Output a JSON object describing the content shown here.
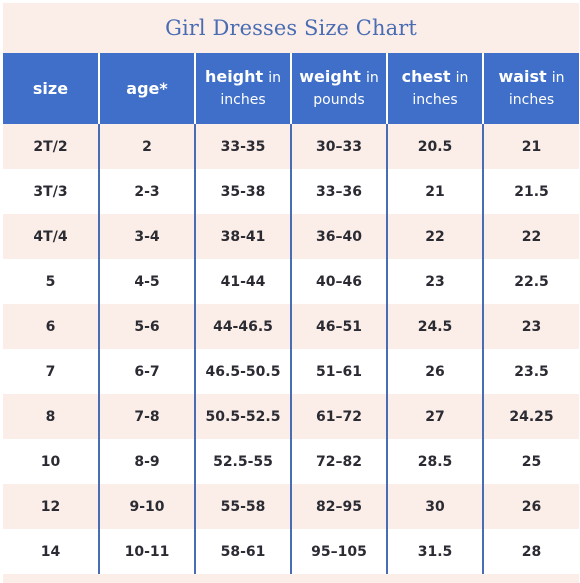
{
  "title": "Girl Dresses Size Chart",
  "headers": [
    {
      "main": "size",
      "unit": ""
    },
    {
      "main": "age*",
      "unit": ""
    },
    {
      "main": "height",
      "unit_inline": "in",
      "unit": "inches"
    },
    {
      "main": "weight",
      "unit_inline": "in",
      "unit": "pounds"
    },
    {
      "main": "chest",
      "unit_inline": "in",
      "unit": "inches"
    },
    {
      "main": "waist",
      "unit_inline": "in",
      "unit": "inches"
    }
  ],
  "rows": [
    [
      "2T/2",
      "2",
      "33-35",
      "30–33",
      "20.5",
      "21"
    ],
    [
      "3T/3",
      "2-3",
      "35-38",
      "33–36",
      "21",
      "21.5"
    ],
    [
      "4T/4",
      "3-4",
      "38-41",
      "36–40",
      "22",
      "22"
    ],
    [
      "5",
      "4-5",
      "41-44",
      "40–46",
      "23",
      "22.5"
    ],
    [
      "6",
      "5-6",
      "44-46.5",
      "46–51",
      "24.5",
      "23"
    ],
    [
      "7",
      "6-7",
      "46.5-50.5",
      "51–61",
      "26",
      "23.5"
    ],
    [
      "8",
      "7-8",
      "50.5-52.5",
      "61–72",
      "27",
      "24.25"
    ],
    [
      "10",
      "8-9",
      "52.5-55",
      "72–82",
      "28.5",
      "25"
    ],
    [
      "12",
      "9-10",
      "55-58",
      "82–95",
      "30",
      "26"
    ],
    [
      "14",
      "10-11",
      "58-61",
      "95–105",
      "31.5",
      "28"
    ]
  ],
  "colors": {
    "header_bg": "#3f6fc9",
    "title_color": "#4a6cb3",
    "stripe_pink": "#fbeee8",
    "stripe_white": "#ffffff",
    "divider": "#4a6cb3"
  }
}
